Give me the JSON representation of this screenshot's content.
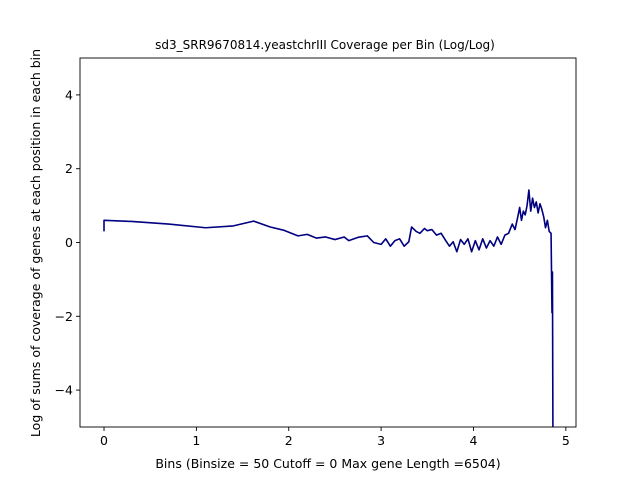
{
  "chart_data": {
    "type": "line",
    "title": "sd3_SRR9670814.yeastchrIII Coverage per Bin (Log/Log)",
    "xlabel": "Bins  (Binsize = 50 Cutoff = 0 Max gene Length =6504)",
    "ylabel": "Log of sums of coverage of genes at each position in each bin",
    "xlim": [
      -0.26,
      5.11
    ],
    "ylim": [
      -5,
      5
    ],
    "x_ticks": [
      0,
      1,
      2,
      3,
      4,
      5
    ],
    "x_tick_labels": [
      "0",
      "1",
      "2",
      "3",
      "4",
      "5"
    ],
    "y_ticks": [
      -4,
      -2,
      0,
      2,
      4
    ],
    "y_tick_labels": [
      "−4",
      "−2",
      "0",
      "2",
      "4"
    ],
    "grid": false,
    "color": "#000080",
    "series": [
      {
        "x": [
          0,
          0,
          0.3,
          0.7,
          1.1,
          1.4,
          1.62,
          1.8,
          1.95,
          2.1,
          2.2,
          2.3,
          2.4,
          2.5,
          2.6,
          2.65,
          2.75,
          2.85,
          2.92,
          3.0,
          3.05,
          3.1,
          3.15,
          3.2,
          3.25,
          3.3,
          3.33,
          3.38,
          3.42,
          3.47,
          3.5,
          3.55,
          3.6,
          3.65,
          3.7,
          3.74,
          3.78,
          3.82,
          3.86,
          3.9,
          3.94,
          3.98,
          4.02,
          4.06,
          4.1,
          4.14,
          4.18,
          4.22,
          4.26,
          4.3,
          4.34,
          4.38,
          4.42,
          4.45,
          4.48,
          4.5,
          4.52,
          4.54,
          4.56,
          4.58,
          4.6,
          4.62,
          4.64,
          4.66,
          4.68,
          4.7,
          4.72,
          4.74,
          4.76,
          4.78,
          4.8,
          4.82,
          4.84,
          4.845,
          4.85,
          4.855,
          4.86
        ],
        "y": [
          0.3,
          0.6,
          0.57,
          0.5,
          0.4,
          0.45,
          0.58,
          0.42,
          0.33,
          0.18,
          0.22,
          0.12,
          0.15,
          0.08,
          0.15,
          0.05,
          0.14,
          0.18,
          0.0,
          -0.05,
          0.1,
          -0.1,
          0.05,
          0.1,
          -0.1,
          0.02,
          0.42,
          0.3,
          0.25,
          0.38,
          0.32,
          0.35,
          0.2,
          0.25,
          0.05,
          -0.1,
          0.02,
          -0.25,
          0.08,
          -0.05,
          0.1,
          -0.25,
          0.05,
          -0.2,
          0.1,
          -0.15,
          0.05,
          -0.1,
          0.15,
          -0.05,
          0.2,
          0.25,
          0.5,
          0.35,
          0.7,
          0.95,
          0.6,
          0.85,
          0.75,
          1.0,
          1.42,
          0.85,
          1.2,
          0.95,
          1.1,
          0.8,
          1.05,
          0.9,
          0.7,
          0.4,
          0.6,
          0.3,
          0.25,
          -0.8,
          -1.9,
          -0.8,
          -5.0
        ]
      }
    ]
  }
}
